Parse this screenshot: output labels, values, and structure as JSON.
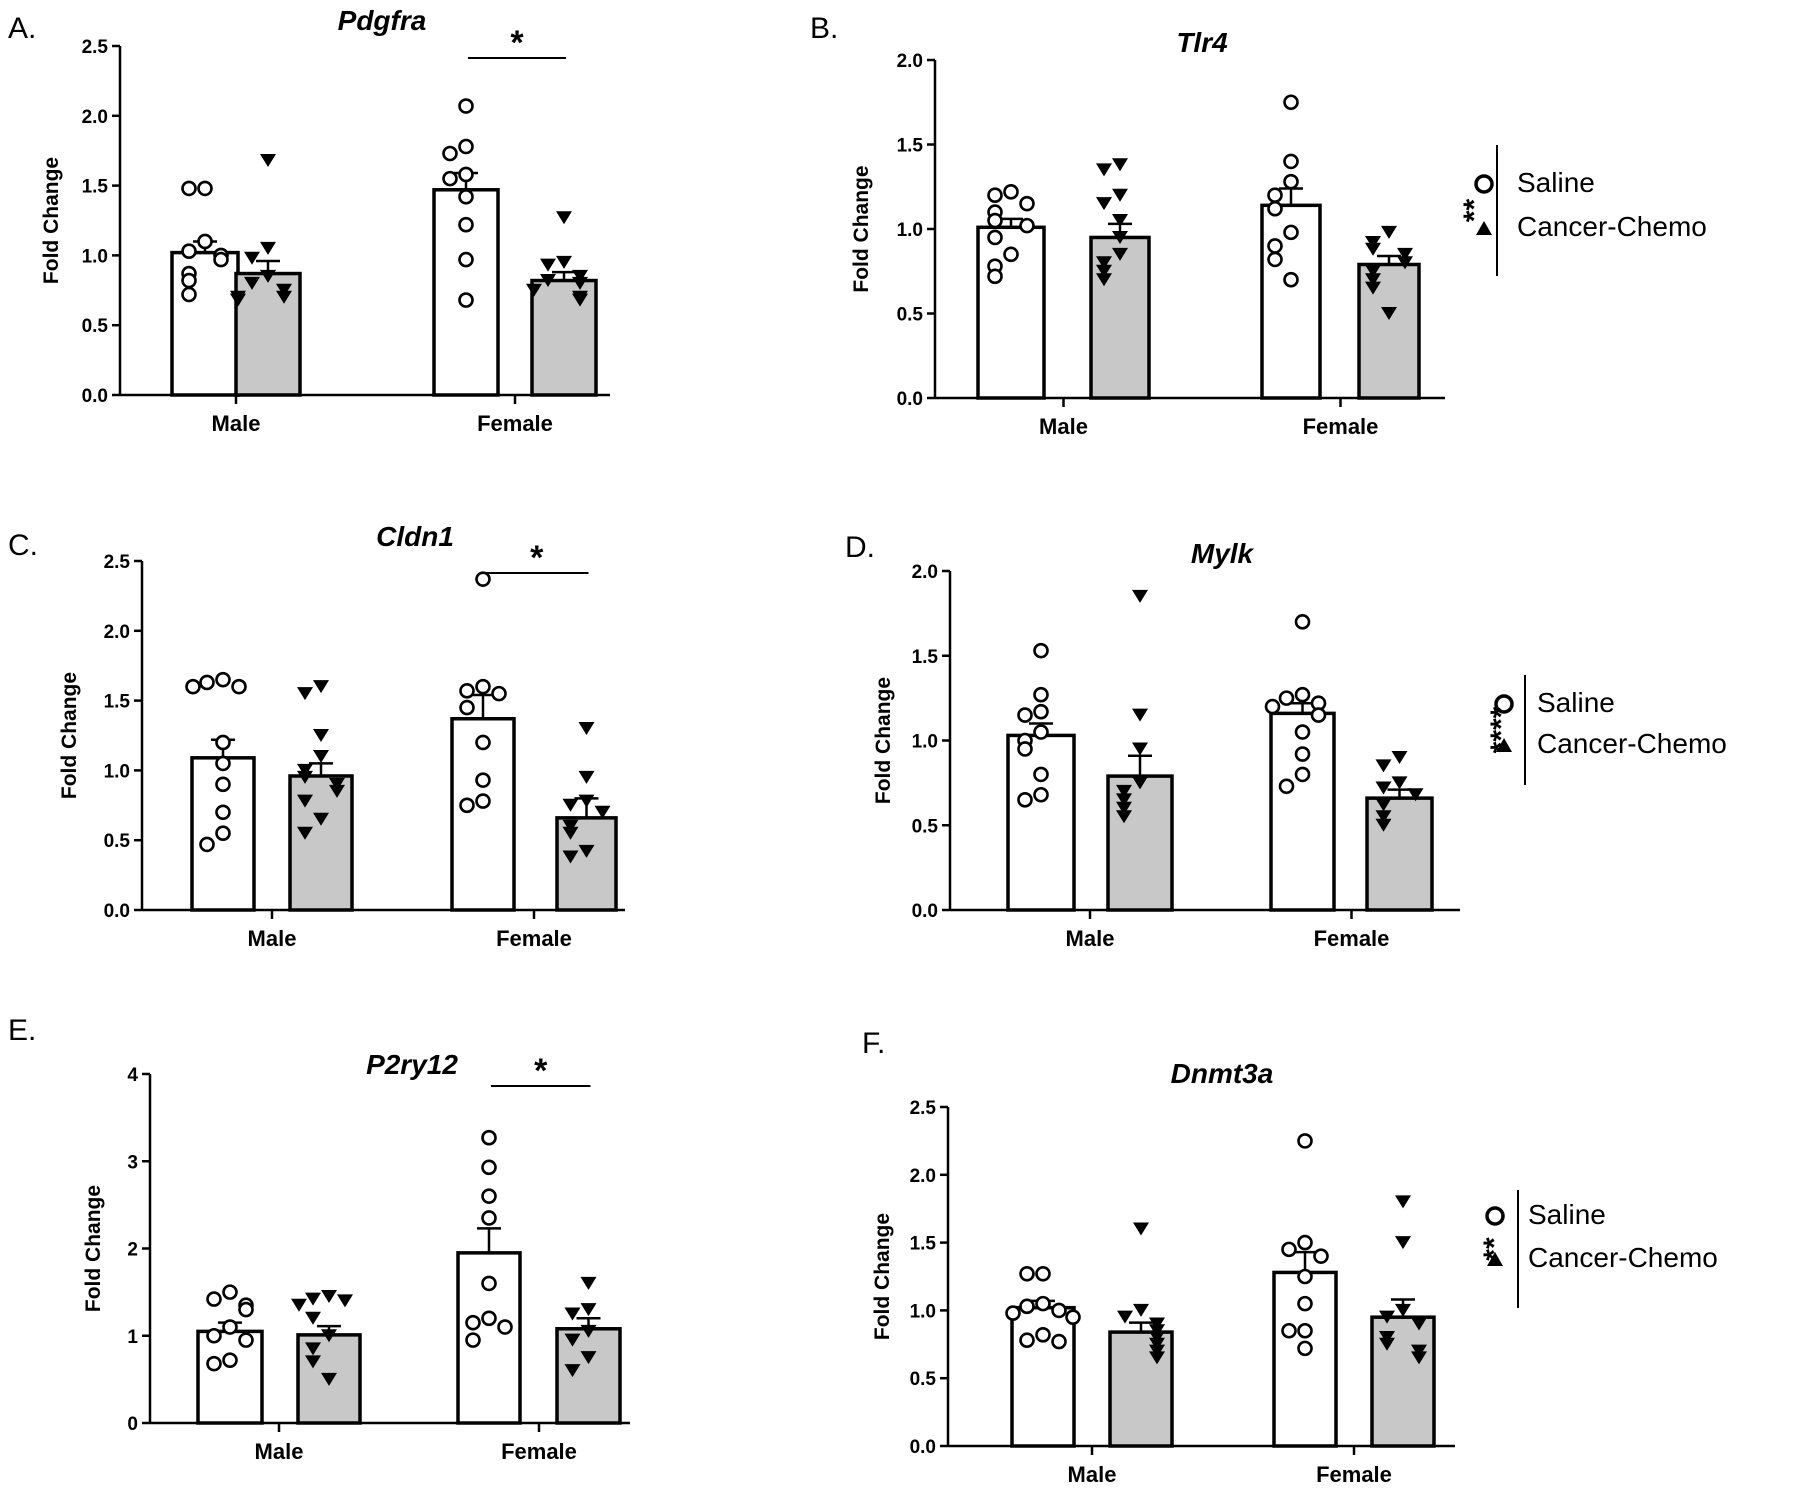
{
  "chart_data": [
    {
      "type": "bar",
      "panel": "A.",
      "title": "Pdgfra",
      "ylabel": "Fold Change",
      "xlabel": "",
      "categories": [
        "Male",
        "Female"
      ],
      "ylim": [
        0,
        2.5
      ],
      "yticks": [
        "0.0",
        "0.5",
        "1.0",
        "1.5",
        "2.0",
        "2.5"
      ],
      "legend": null,
      "group_significance": null,
      "comparisons": [
        {
          "group": "Female",
          "label": "*"
        }
      ],
      "series": [
        {
          "name": "Saline",
          "marker": "circle",
          "fill": "#ffffff",
          "means": [
            1.02,
            1.47
          ],
          "sem": [
            0.08,
            0.12
          ],
          "points": [
            [
              1.48,
              1.48,
              1.1,
              1.03,
              1.0,
              0.97,
              0.87,
              0.82,
              0.72
            ],
            [
              2.07,
              1.78,
              1.73,
              1.58,
              1.55,
              1.42,
              1.22,
              0.97,
              0.68
            ]
          ]
        },
        {
          "name": "Cancer-Chemo",
          "marker": "triangle-down",
          "fill": "#c8c8c8",
          "means": [
            0.87,
            0.82
          ],
          "sem": [
            0.09,
            0.06
          ],
          "points": [
            [
              1.68,
              1.05,
              0.98,
              0.85,
              0.8,
              0.75,
              0.7,
              0.7,
              0.68
            ],
            [
              1.27,
              0.95,
              0.93,
              0.85,
              0.82,
              0.8,
              0.75,
              0.7,
              0.68
            ]
          ]
        }
      ]
    },
    {
      "type": "bar",
      "panel": "B.",
      "title": "Tlr4",
      "ylabel": "Fold Change",
      "xlabel": "",
      "categories": [
        "Male",
        "Female"
      ],
      "ylim": [
        0,
        2.0
      ],
      "yticks": [
        "0.0",
        "0.5",
        "1.0",
        "1.5",
        "2.0"
      ],
      "legend": [
        "Saline",
        "Cancer-Chemo"
      ],
      "group_significance": "**",
      "comparisons": [],
      "series": [
        {
          "name": "Saline",
          "marker": "circle",
          "fill": "#ffffff",
          "means": [
            1.01,
            1.14
          ],
          "sem": [
            0.05,
            0.1
          ],
          "points": [
            [
              1.22,
              1.2,
              1.15,
              1.1,
              1.05,
              1.02,
              0.95,
              0.85,
              0.78,
              0.72
            ],
            [
              1.75,
              1.4,
              1.28,
              1.2,
              1.12,
              0.98,
              0.9,
              0.82,
              0.7
            ]
          ]
        },
        {
          "name": "Cancer-Chemo",
          "marker": "triangle-down",
          "fill": "#c8c8c8",
          "means": [
            0.95,
            0.79
          ],
          "sem": [
            0.08,
            0.05
          ],
          "points": [
            [
              1.38,
              1.35,
              1.2,
              1.15,
              1.05,
              0.95,
              0.85,
              0.8,
              0.75,
              0.7
            ],
            [
              0.98,
              0.92,
              0.88,
              0.85,
              0.8,
              0.75,
              0.7,
              0.65,
              0.5
            ]
          ]
        }
      ]
    },
    {
      "type": "bar",
      "panel": "C.",
      "title": "Cldn1",
      "ylabel": "Fold Change",
      "xlabel": "",
      "categories": [
        "Male",
        "Female"
      ],
      "ylim": [
        0,
        2.5
      ],
      "yticks": [
        "0.0",
        "0.5",
        "1.0",
        "1.5",
        "2.0",
        "2.5"
      ],
      "legend": null,
      "group_significance": null,
      "comparisons": [
        {
          "group": "Female",
          "label": "*"
        }
      ],
      "series": [
        {
          "name": "Saline",
          "marker": "circle",
          "fill": "#ffffff",
          "means": [
            1.09,
            1.37
          ],
          "sem": [
            0.13,
            0.17
          ],
          "points": [
            [
              1.65,
              1.63,
              1.6,
              1.6,
              1.2,
              1.05,
              0.9,
              0.7,
              0.55,
              0.47
            ],
            [
              2.37,
              1.6,
              1.57,
              1.55,
              1.45,
              1.2,
              0.93,
              0.78,
              0.75
            ]
          ]
        },
        {
          "name": "Cancer-Chemo",
          "marker": "triangle-down",
          "fill": "#c8c8c8",
          "means": [
            0.96,
            0.66
          ],
          "sem": [
            0.09,
            0.14
          ],
          "points": [
            [
              1.6,
              1.55,
              1.25,
              1.1,
              1.0,
              0.95,
              0.9,
              0.85,
              0.78,
              0.65,
              0.55
            ],
            [
              1.3,
              0.95,
              0.78,
              0.75,
              0.7,
              0.6,
              0.55,
              0.42,
              0.38
            ]
          ]
        }
      ]
    },
    {
      "type": "bar",
      "panel": "D.",
      "title": "Mylk",
      "ylabel": "Fold Change",
      "xlabel": "",
      "categories": [
        "Male",
        "Female"
      ],
      "ylim": [
        0,
        2.0
      ],
      "yticks": [
        "0.0",
        "0.5",
        "1.0",
        "1.5",
        "2.0"
      ],
      "legend": [
        "Saline",
        "Cancer-Chemo"
      ],
      "group_significance": "****",
      "comparisons": [],
      "series": [
        {
          "name": "Saline",
          "marker": "circle",
          "fill": "#ffffff",
          "means": [
            1.03,
            1.16
          ],
          "sem": [
            0.07,
            0.06
          ],
          "points": [
            [
              1.53,
              1.27,
              1.17,
              1.15,
              1.05,
              1.0,
              0.95,
              0.8,
              0.68,
              0.65
            ],
            [
              1.7,
              1.27,
              1.25,
              1.22,
              1.2,
              1.15,
              1.05,
              0.92,
              0.8,
              0.73
            ]
          ]
        },
        {
          "name": "Cancer-Chemo",
          "marker": "triangle-down",
          "fill": "#c8c8c8",
          "means": [
            0.79,
            0.66
          ],
          "sem": [
            0.12,
            0.05
          ],
          "points": [
            [
              1.85,
              1.15,
              0.95,
              0.75,
              0.7,
              0.65,
              0.6,
              0.55
            ],
            [
              0.9,
              0.85,
              0.75,
              0.72,
              0.68,
              0.62,
              0.55,
              0.5
            ]
          ]
        }
      ]
    },
    {
      "type": "bar",
      "panel": "E.",
      "title": "P2ry12",
      "ylabel": "Fold Change",
      "xlabel": "",
      "categories": [
        "Male",
        "Female"
      ],
      "ylim": [
        0,
        4
      ],
      "yticks": [
        "0",
        "1",
        "2",
        "3",
        "4"
      ],
      "legend": null,
      "group_significance": null,
      "comparisons": [
        {
          "group": "Female",
          "label": "*"
        }
      ],
      "series": [
        {
          "name": "Saline",
          "marker": "circle",
          "fill": "#ffffff",
          "means": [
            1.05,
            1.95
          ],
          "sem": [
            0.1,
            0.28
          ],
          "points": [
            [
              1.5,
              1.42,
              1.35,
              1.3,
              1.1,
              1.0,
              0.95,
              0.72,
              0.68
            ],
            [
              3.27,
              2.93,
              2.6,
              2.35,
              1.6,
              1.2,
              1.15,
              1.1,
              0.95
            ]
          ]
        },
        {
          "name": "Cancer-Chemo",
          "marker": "triangle-down",
          "fill": "#c8c8c8",
          "means": [
            1.01,
            1.08
          ],
          "sem": [
            0.1,
            0.12
          ],
          "points": [
            [
              1.45,
              1.42,
              1.4,
              1.35,
              1.2,
              1.0,
              0.85,
              0.7,
              0.5
            ],
            [
              1.6,
              1.3,
              1.25,
              1.05,
              0.95,
              0.75,
              0.6
            ]
          ]
        }
      ]
    },
    {
      "type": "bar",
      "panel": "F.",
      "title": "Dnmt3a",
      "ylabel": "Fold Change",
      "xlabel": "",
      "categories": [
        "Male",
        "Female"
      ],
      "ylim": [
        0,
        2.5
      ],
      "yticks": [
        "0.0",
        "0.5",
        "1.0",
        "1.5",
        "2.0",
        "2.5"
      ],
      "legend": [
        "Saline",
        "Cancer-Chemo"
      ],
      "group_significance": "**",
      "comparisons": [],
      "series": [
        {
          "name": "Saline",
          "marker": "circle",
          "fill": "#ffffff",
          "means": [
            1.02,
            1.28
          ],
          "sem": [
            0.05,
            0.15
          ],
          "points": [
            [
              1.27,
              1.27,
              1.05,
              1.03,
              1.0,
              0.98,
              0.95,
              0.82,
              0.78,
              0.77
            ],
            [
              2.25,
              1.5,
              1.45,
              1.4,
              1.25,
              1.05,
              0.85,
              0.85,
              0.72
            ]
          ]
        },
        {
          "name": "Cancer-Chemo",
          "marker": "triangle-down",
          "fill": "#c8c8c8",
          "means": [
            0.84,
            0.95
          ],
          "sem": [
            0.07,
            0.13
          ],
          "points": [
            [
              1.6,
              1.0,
              0.95,
              0.9,
              0.85,
              0.8,
              0.75,
              0.7,
              0.65
            ],
            [
              1.8,
              1.5,
              1.0,
              0.95,
              0.9,
              0.8,
              0.75,
              0.7,
              0.65
            ]
          ]
        }
      ]
    }
  ]
}
